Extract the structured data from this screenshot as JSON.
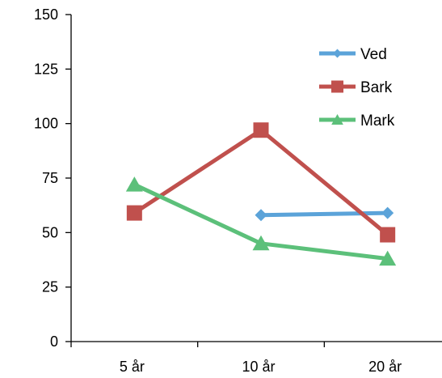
{
  "chart_data": {
    "type": "line",
    "title": "",
    "xlabel": "",
    "ylabel": "",
    "categories": [
      "5 år",
      "10 år",
      "20 år"
    ],
    "ylim": [
      0,
      150
    ],
    "yticks": [
      0,
      25,
      50,
      75,
      100,
      125,
      150
    ],
    "grid": false,
    "legend": "top-right",
    "series": [
      {
        "name": "Ved",
        "color": "#5BA3D9",
        "marker": "diamond",
        "values": [
          null,
          58,
          59
        ]
      },
      {
        "name": "Bark",
        "color": "#C0504D",
        "marker": "square",
        "values": [
          59,
          97,
          49
        ]
      },
      {
        "name": "Mark",
        "color": "#5CC07A",
        "marker": "triangle",
        "values": [
          72,
          45,
          38
        ]
      }
    ]
  }
}
